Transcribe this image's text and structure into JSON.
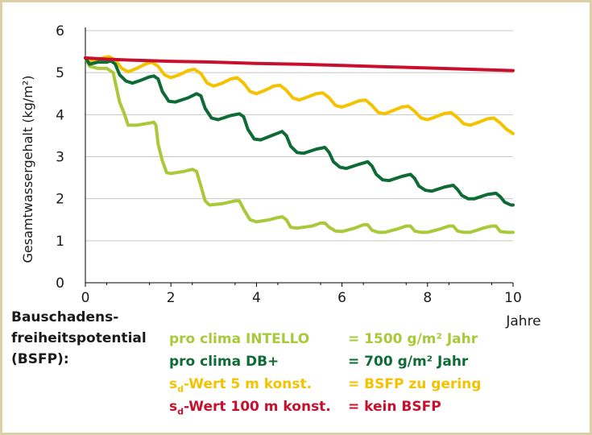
{
  "chart_data": {
    "type": "line",
    "ylabel": "Gesamtwassergehalt (kg/m²)",
    "xlabel": "Jahre",
    "xlim": [
      0,
      10
    ],
    "ylim": [
      0,
      6
    ],
    "x_ticks": [
      "0",
      "2",
      "4",
      "6",
      "8",
      "10"
    ],
    "y_ticks": [
      "0",
      "1",
      "2",
      "3",
      "4",
      "5",
      "6"
    ],
    "grid": "horizontal",
    "colors": {
      "intello": "#a9c93a",
      "db": "#0f6b35",
      "sd5": "#f5c200",
      "sd100": "#c8102e"
    },
    "series": [
      {
        "name": "pro clima INTELLO",
        "color": "#a9c93a",
        "points": [
          [
            0,
            5.35
          ],
          [
            0.1,
            5.15
          ],
          [
            0.3,
            5.1
          ],
          [
            0.5,
            5.1
          ],
          [
            0.65,
            5.0
          ],
          [
            0.8,
            4.3
          ],
          [
            0.9,
            4.05
          ],
          [
            1.0,
            3.75
          ],
          [
            1.2,
            3.75
          ],
          [
            1.5,
            3.8
          ],
          [
            1.6,
            3.82
          ],
          [
            1.65,
            3.75
          ],
          [
            1.7,
            3.3
          ],
          [
            1.8,
            2.9
          ],
          [
            1.9,
            2.62
          ],
          [
            2.0,
            2.6
          ],
          [
            2.3,
            2.65
          ],
          [
            2.5,
            2.7
          ],
          [
            2.6,
            2.65
          ],
          [
            2.7,
            2.3
          ],
          [
            2.8,
            1.95
          ],
          [
            2.9,
            1.85
          ],
          [
            3.2,
            1.88
          ],
          [
            3.5,
            1.95
          ],
          [
            3.6,
            1.95
          ],
          [
            3.7,
            1.75
          ],
          [
            3.85,
            1.5
          ],
          [
            4.0,
            1.45
          ],
          [
            4.3,
            1.5
          ],
          [
            4.5,
            1.55
          ],
          [
            4.6,
            1.57
          ],
          [
            4.7,
            1.5
          ],
          [
            4.8,
            1.32
          ],
          [
            4.95,
            1.3
          ],
          [
            5.3,
            1.35
          ],
          [
            5.5,
            1.42
          ],
          [
            5.6,
            1.42
          ],
          [
            5.7,
            1.32
          ],
          [
            5.85,
            1.23
          ],
          [
            6.0,
            1.22
          ],
          [
            6.3,
            1.3
          ],
          [
            6.5,
            1.38
          ],
          [
            6.6,
            1.38
          ],
          [
            6.7,
            1.25
          ],
          [
            6.85,
            1.2
          ],
          [
            7.0,
            1.2
          ],
          [
            7.3,
            1.28
          ],
          [
            7.5,
            1.35
          ],
          [
            7.6,
            1.35
          ],
          [
            7.7,
            1.23
          ],
          [
            7.85,
            1.2
          ],
          [
            8.0,
            1.2
          ],
          [
            8.3,
            1.28
          ],
          [
            8.5,
            1.35
          ],
          [
            8.6,
            1.35
          ],
          [
            8.7,
            1.23
          ],
          [
            8.85,
            1.2
          ],
          [
            9.0,
            1.2
          ],
          [
            9.3,
            1.3
          ],
          [
            9.5,
            1.35
          ],
          [
            9.6,
            1.35
          ],
          [
            9.7,
            1.22
          ],
          [
            9.85,
            1.2
          ],
          [
            10.0,
            1.2
          ]
        ]
      },
      {
        "name": "pro clima DB+",
        "color": "#0f6b35",
        "points": [
          [
            0,
            5.35
          ],
          [
            0.1,
            5.2
          ],
          [
            0.3,
            5.25
          ],
          [
            0.5,
            5.25
          ],
          [
            0.6,
            5.28
          ],
          [
            0.7,
            5.2
          ],
          [
            0.8,
            4.95
          ],
          [
            0.95,
            4.8
          ],
          [
            1.1,
            4.75
          ],
          [
            1.3,
            4.82
          ],
          [
            1.5,
            4.9
          ],
          [
            1.6,
            4.92
          ],
          [
            1.7,
            4.85
          ],
          [
            1.8,
            4.55
          ],
          [
            1.95,
            4.32
          ],
          [
            2.1,
            4.3
          ],
          [
            2.4,
            4.4
          ],
          [
            2.6,
            4.5
          ],
          [
            2.7,
            4.45
          ],
          [
            2.8,
            4.15
          ],
          [
            2.95,
            3.92
          ],
          [
            3.1,
            3.88
          ],
          [
            3.4,
            3.98
          ],
          [
            3.6,
            4.02
          ],
          [
            3.7,
            3.95
          ],
          [
            3.8,
            3.65
          ],
          [
            3.95,
            3.42
          ],
          [
            4.1,
            3.4
          ],
          [
            4.4,
            3.52
          ],
          [
            4.6,
            3.6
          ],
          [
            4.7,
            3.5
          ],
          [
            4.8,
            3.25
          ],
          [
            4.95,
            3.1
          ],
          [
            5.1,
            3.08
          ],
          [
            5.4,
            3.18
          ],
          [
            5.6,
            3.22
          ],
          [
            5.7,
            3.1
          ],
          [
            5.8,
            2.88
          ],
          [
            5.95,
            2.75
          ],
          [
            6.1,
            2.72
          ],
          [
            6.4,
            2.82
          ],
          [
            6.6,
            2.88
          ],
          [
            6.7,
            2.78
          ],
          [
            6.8,
            2.58
          ],
          [
            6.95,
            2.45
          ],
          [
            7.1,
            2.43
          ],
          [
            7.4,
            2.53
          ],
          [
            7.6,
            2.58
          ],
          [
            7.7,
            2.48
          ],
          [
            7.8,
            2.3
          ],
          [
            7.95,
            2.2
          ],
          [
            8.1,
            2.18
          ],
          [
            8.4,
            2.28
          ],
          [
            8.6,
            2.32
          ],
          [
            8.7,
            2.22
          ],
          [
            8.8,
            2.08
          ],
          [
            8.95,
            2.0
          ],
          [
            9.1,
            2.0
          ],
          [
            9.4,
            2.1
          ],
          [
            9.6,
            2.13
          ],
          [
            9.7,
            2.05
          ],
          [
            9.8,
            1.92
          ],
          [
            9.95,
            1.85
          ],
          [
            10.0,
            1.85
          ]
        ]
      },
      {
        "name": "sd-Wert 5 m konst.",
        "color": "#f5c200",
        "points": [
          [
            0,
            5.35
          ],
          [
            0.2,
            5.25
          ],
          [
            0.4,
            5.35
          ],
          [
            0.55,
            5.38
          ],
          [
            0.7,
            5.3
          ],
          [
            0.85,
            5.1
          ],
          [
            1.0,
            5.02
          ],
          [
            1.2,
            5.1
          ],
          [
            1.4,
            5.2
          ],
          [
            1.55,
            5.25
          ],
          [
            1.7,
            5.15
          ],
          [
            1.85,
            4.95
          ],
          [
            2.0,
            4.88
          ],
          [
            2.2,
            4.95
          ],
          [
            2.4,
            5.05
          ],
          [
            2.55,
            5.08
          ],
          [
            2.7,
            4.98
          ],
          [
            2.85,
            4.75
          ],
          [
            3.0,
            4.68
          ],
          [
            3.2,
            4.75
          ],
          [
            3.4,
            4.85
          ],
          [
            3.55,
            4.88
          ],
          [
            3.7,
            4.75
          ],
          [
            3.85,
            4.55
          ],
          [
            4.0,
            4.5
          ],
          [
            4.2,
            4.58
          ],
          [
            4.4,
            4.68
          ],
          [
            4.55,
            4.7
          ],
          [
            4.7,
            4.58
          ],
          [
            4.85,
            4.4
          ],
          [
            5.0,
            4.35
          ],
          [
            5.2,
            4.42
          ],
          [
            5.4,
            4.5
          ],
          [
            5.55,
            4.52
          ],
          [
            5.7,
            4.4
          ],
          [
            5.85,
            4.22
          ],
          [
            6.0,
            4.18
          ],
          [
            6.2,
            4.25
          ],
          [
            6.4,
            4.33
          ],
          [
            6.55,
            4.35
          ],
          [
            6.7,
            4.22
          ],
          [
            6.85,
            4.05
          ],
          [
            7.0,
            4.02
          ],
          [
            7.2,
            4.1
          ],
          [
            7.4,
            4.18
          ],
          [
            7.55,
            4.2
          ],
          [
            7.7,
            4.08
          ],
          [
            7.85,
            3.92
          ],
          [
            8.0,
            3.88
          ],
          [
            8.2,
            3.95
          ],
          [
            8.4,
            4.03
          ],
          [
            8.55,
            4.05
          ],
          [
            8.7,
            3.93
          ],
          [
            8.85,
            3.78
          ],
          [
            9.0,
            3.75
          ],
          [
            9.2,
            3.82
          ],
          [
            9.4,
            3.9
          ],
          [
            9.55,
            3.92
          ],
          [
            9.7,
            3.8
          ],
          [
            9.85,
            3.65
          ],
          [
            10.0,
            3.55
          ]
        ]
      },
      {
        "name": "sd-Wert 100 m konst.",
        "color": "#c8102e",
        "points": [
          [
            0,
            5.35
          ],
          [
            0.5,
            5.32
          ],
          [
            1,
            5.3
          ],
          [
            2,
            5.27
          ],
          [
            3,
            5.25
          ],
          [
            4,
            5.22
          ],
          [
            5,
            5.2
          ],
          [
            6,
            5.17
          ],
          [
            7,
            5.14
          ],
          [
            8,
            5.11
          ],
          [
            9,
            5.08
          ],
          [
            10,
            5.05
          ]
        ]
      }
    ]
  },
  "legend": {
    "title_lines": [
      "Bauschadens-",
      "freiheitspotential",
      "(BSFP):"
    ],
    "rows": [
      {
        "label": "pro clima INTELLO",
        "value": "= 1500 g/m² Jahr",
        "color": "#a9c93a"
      },
      {
        "label": "pro clima DB+",
        "value": "= 700 g/m² Jahr",
        "color": "#0f6b35"
      },
      {
        "label_main": "s",
        "label_sub": "d",
        "label_rest": "-Wert 5 m konst.",
        "value": "= BSFP zu gering",
        "color": "#f5c200"
      },
      {
        "label_main": "s",
        "label_sub": "d",
        "label_rest": "-Wert 100 m konst.",
        "value": "= kein BSFP",
        "color": "#c8102e"
      }
    ]
  }
}
